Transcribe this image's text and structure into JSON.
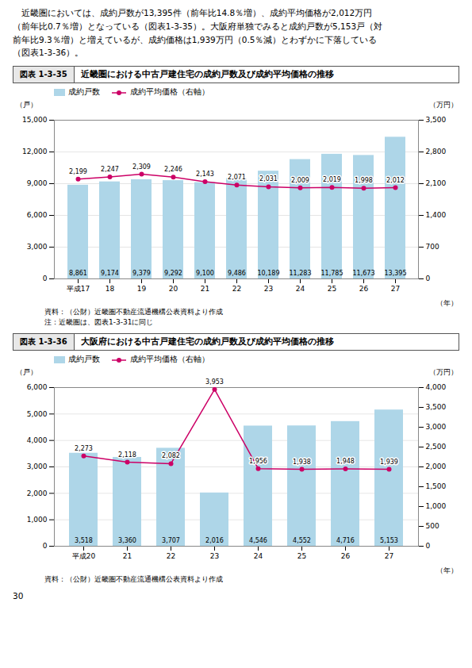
{
  "chart_data": [
    {
      "type": "bar",
      "label": "図表 1-3-35",
      "title": "近畿圏における中古戸建住宅の成約戸数及び成約平均価格の推移",
      "ylabel": "（戸）",
      "y2label": "（万円）",
      "xlabel": "（年）",
      "categories": [
        "平成17",
        "18",
        "19",
        "20",
        "21",
        "22",
        "23",
        "24",
        "25",
        "26",
        "27"
      ],
      "series": [
        {
          "name": "成約戸数",
          "type": "bar",
          "color": "#aed6e8",
          "values": [
            8861,
            9174,
            9379,
            9292,
            9100,
            9486,
            10189,
            11283,
            11785,
            11673,
            13395
          ],
          "value_labels": [
            "8,861",
            "9,174",
            "9,379",
            "9,292",
            "9,100",
            "9,486",
            "10,189",
            "11,283",
            "11,785",
            "11,673",
            "13,395"
          ]
        },
        {
          "name": "成約平均価格（右軸）",
          "type": "line",
          "axis": "y2",
          "color": "#cc0066",
          "marker": "circle",
          "values": [
            2199,
            2247,
            2309,
            2246,
            2143,
            2071,
            2031,
            2009,
            2019,
            1998,
            2012
          ],
          "value_labels": [
            "2,199",
            "2,247",
            "2,309",
            "2,246",
            "2,143",
            "2,071",
            "2,031",
            "2,009",
            "2,019",
            "1,998",
            "2,012"
          ]
        }
      ],
      "ylim": [
        0,
        15000
      ],
      "yticks": [
        0,
        {
          "value": 3000,
          "label": "3,000"
        },
        {
          "value": 6000,
          "label": "6,000"
        },
        {
          "value": 9000,
          "label": "9,000"
        },
        {
          "value": 12000,
          "label": "12,000"
        },
        {
          "value": 15000,
          "label": "15,000"
        }
      ],
      "y2lim": [
        0,
        3500
      ],
      "y2ticks": [
        0,
        700,
        {
          "value": 1400,
          "label": "1,400"
        },
        {
          "value": 2100,
          "label": "2,100"
        },
        {
          "value": 2800,
          "label": "2,800"
        },
        {
          "value": 3500,
          "label": "3,500"
        }
      ],
      "grid": true,
      "legend": "top-left",
      "data_labels": true,
      "source": "資料：（公財）近畿圏不動産流通機構公表資料より作成",
      "note": "注：近畿圏は、図表1-3-31に同じ"
    },
    {
      "type": "bar",
      "label": "図表 1-3-36",
      "title": "大阪府における中古戸建住宅の成約戸数及び成約平均価格の推移",
      "ylabel": "（戸）",
      "y2label": "（万円）",
      "xlabel": "（年）",
      "categories": [
        "平成20",
        "21",
        "22",
        "23",
        "24",
        "25",
        "26",
        "27"
      ],
      "series": [
        {
          "name": "成約戸数",
          "type": "bar",
          "color": "#aed6e8",
          "values": [
            3518,
            3360,
            3707,
            2016,
            4546,
            4552,
            4716,
            5153
          ],
          "value_labels": [
            "3,518",
            "3,360",
            "3,707",
            "2,016",
            "4,546",
            "4,552",
            "4,716",
            "5,153"
          ]
        },
        {
          "name": "成約平均価格（右軸）",
          "type": "line",
          "axis": "y2",
          "color": "#cc0066",
          "marker": "circle",
          "values": [
            2273,
            2118,
            2082,
            3953,
            1956,
            1938,
            1948,
            1939
          ],
          "value_labels": [
            "2,273",
            "2,118",
            "2,082",
            "3,953",
            "1,956",
            "1,938",
            "1,948",
            "1,939"
          ]
        }
      ],
      "ylim": [
        0,
        6000
      ],
      "yticks": [
        0,
        {
          "value": 1000,
          "label": "1,000"
        },
        {
          "value": 2000,
          "label": "2,000"
        },
        {
          "value": 3000,
          "label": "3,000"
        },
        {
          "value": 4000,
          "label": "4,000"
        },
        {
          "value": 5000,
          "label": "5,000"
        },
        {
          "value": 6000,
          "label": "6,000"
        }
      ],
      "y2lim": [
        0,
        4000
      ],
      "y2ticks": [
        0,
        500,
        {
          "value": 1000,
          "label": "1,000"
        },
        {
          "value": 1500,
          "label": "1,500"
        },
        {
          "value": 2000,
          "label": "2,000"
        },
        {
          "value": 2500,
          "label": "2,500"
        },
        {
          "value": 3000,
          "label": "3,000"
        },
        {
          "value": 3500,
          "label": "3,500"
        },
        {
          "value": 4000,
          "label": "4,000"
        }
      ],
      "grid": true,
      "legend": "top-left",
      "data_labels": true,
      "source": "資料：（公財）近畿圏不動産流通機構公表資料より作成"
    }
  ],
  "annotations": [
    "　近畿圏においては、成約戸数が13,395件（前年比14.8％増）、成約平均価格が2,012万円",
    "（前年比0.7％増）となっている（図表1-3-35）。大阪府単独でみると成約戸数が5,153戸（対",
    "前年比9.3％増）と増えているが、成約価格は1,939万円（0.5％減）とわずかに下落している",
    "（図表1-3-36）。"
  ],
  "page_number": "30"
}
